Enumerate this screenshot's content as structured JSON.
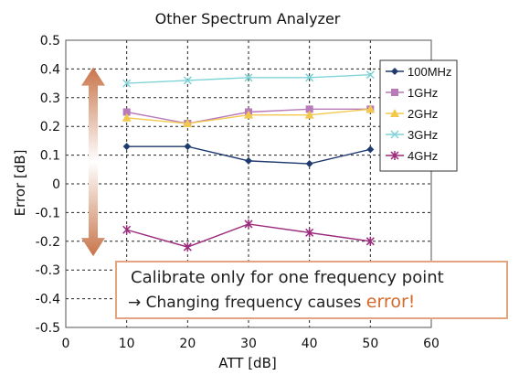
{
  "chart_data": {
    "type": "line",
    "title": "Other Spectrum Analyzer",
    "xlabel": "ATT [dB]",
    "ylabel": "Error [dB]",
    "xlim": [
      0,
      60
    ],
    "ylim": [
      -0.5,
      0.5
    ],
    "x_ticks": [
      "0",
      "10",
      "20",
      "30",
      "40",
      "50",
      "60"
    ],
    "y_ticks": [
      "0.5",
      "0.4",
      "0.3",
      "0.2",
      "0.1",
      "0",
      "-0.1",
      "-0.2",
      "-0.3",
      "-0.4",
      "-0.5"
    ],
    "grid": true,
    "legend_position": "top-right",
    "x": [
      10,
      20,
      30,
      40,
      50
    ],
    "series": [
      {
        "name": "100MHz",
        "marker": "diamond",
        "color": "#1f3a6e",
        "values": [
          0.13,
          0.13,
          0.08,
          0.07,
          0.12
        ]
      },
      {
        "name": "1GHz",
        "marker": "square",
        "color": "#b87ab8",
        "values": [
          0.25,
          0.21,
          0.25,
          0.26,
          0.26
        ]
      },
      {
        "name": "2GHz",
        "marker": "triangle",
        "color": "#f2c94c",
        "values": [
          0.23,
          0.21,
          0.24,
          0.24,
          0.26
        ]
      },
      {
        "name": "3GHz",
        "marker": "x",
        "color": "#7fd4d8",
        "values": [
          0.35,
          0.36,
          0.37,
          0.37,
          0.38
        ]
      },
      {
        "name": "4GHz",
        "marker": "star",
        "color": "#9b2a7c",
        "values": [
          -0.16,
          -0.22,
          -0.14,
          -0.17,
          -0.2
        ]
      }
    ],
    "annotation_arrow": {
      "from": 0.38,
      "to": -0.22,
      "color": "#c8754a"
    }
  },
  "callout": {
    "line1": "Calibrate only for one frequency point",
    "line2_prefix": "→ Changing frequency causes ",
    "line2_highlight": "error!",
    "border_color": "#e3a482",
    "highlight_color": "#d26a2c"
  }
}
